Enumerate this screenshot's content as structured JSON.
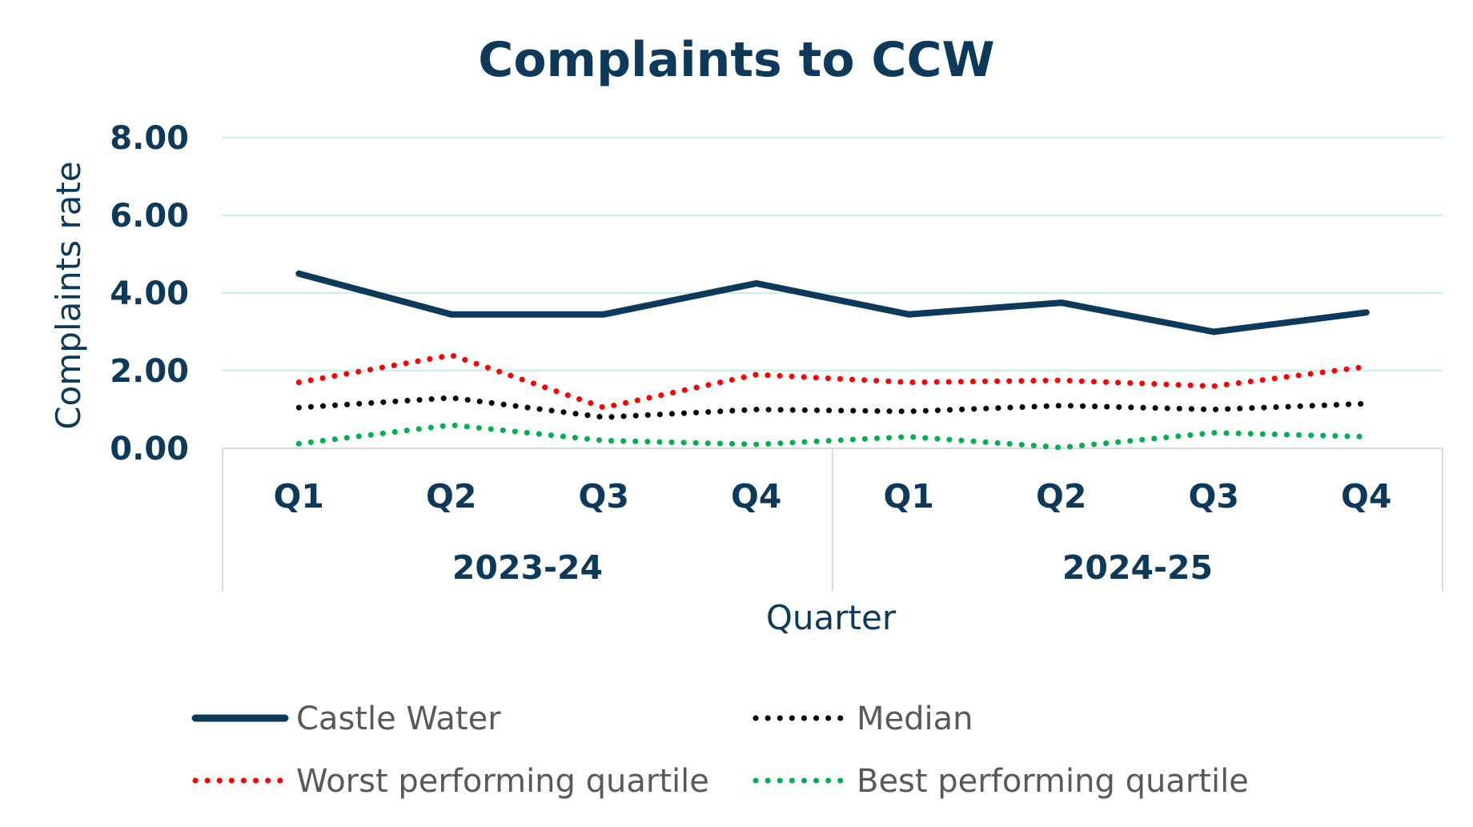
{
  "colors": {
    "title": "#0d3a5a",
    "axis_text": "#0d3a5a",
    "legend_text": "#595959",
    "grid": "#c8eef0",
    "frame": "#d9d9d9"
  },
  "chart_data": {
    "type": "line",
    "title": "Complaints to CCW",
    "xlabel": "Quarter",
    "ylabel": "Complaints rate",
    "ylim": [
      0,
      8
    ],
    "yticks": [
      "0.00",
      "2.00",
      "4.00",
      "6.00",
      "8.00"
    ],
    "grid": true,
    "categories": [
      "Q1",
      "Q2",
      "Q3",
      "Q4",
      "Q1",
      "Q2",
      "Q3",
      "Q4"
    ],
    "groups": [
      {
        "label": "2023-24",
        "span": 4
      },
      {
        "label": "2024-25",
        "span": 4
      }
    ],
    "legend_position": "bottom",
    "series": [
      {
        "name": "Castle Water",
        "color": "#0d3a5a",
        "style": "solid",
        "values": [
          4.5,
          3.45,
          3.45,
          4.25,
          3.45,
          3.75,
          3.0,
          3.5
        ]
      },
      {
        "name": "Median",
        "color": "#000000",
        "style": "dotted",
        "values": [
          1.05,
          1.3,
          0.8,
          1.0,
          0.95,
          1.1,
          1.0,
          1.15
        ]
      },
      {
        "name": "Worst performing quartile",
        "color": "#ff0000",
        "style": "dotted",
        "values": [
          1.7,
          2.4,
          1.05,
          1.9,
          1.7,
          1.75,
          1.6,
          2.1
        ]
      },
      {
        "name": "Best performing quartile",
        "color": "#00b050",
        "style": "dotted",
        "values": [
          0.12,
          0.6,
          0.2,
          0.1,
          0.3,
          0.02,
          0.4,
          0.3
        ]
      }
    ]
  }
}
